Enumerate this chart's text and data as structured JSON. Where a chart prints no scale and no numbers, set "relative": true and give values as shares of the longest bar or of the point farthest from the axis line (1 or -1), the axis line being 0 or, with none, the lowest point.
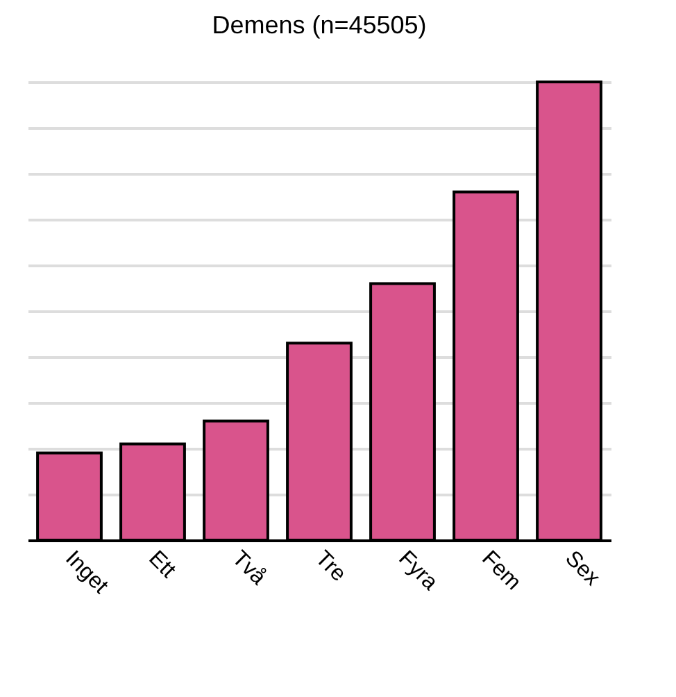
{
  "chart_data": {
    "type": "bar",
    "title": "Demens (n=45505)",
    "categories": [
      "Inget",
      "Ett",
      "Två",
      "Tre",
      "Fyra",
      "Fem",
      "Sex"
    ],
    "values": [
      0.19,
      0.21,
      0.26,
      0.43,
      0.56,
      0.76,
      1
    ],
    "color": "#d9548c",
    "relative": true,
    "grid": true
  }
}
